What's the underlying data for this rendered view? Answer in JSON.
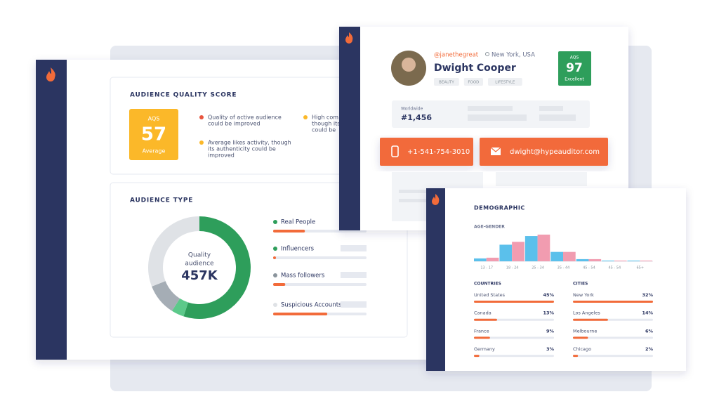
{
  "quality_card": {
    "title": "AUDIENCE QUALITY SCORE",
    "score": {
      "label": "AQS",
      "value": 57,
      "rating": "Average",
      "color": "#fbb829"
    },
    "notes": [
      {
        "color": "#e8553e",
        "lines": [
          "Quality of active audience",
          "could be improved"
        ]
      },
      {
        "color": "#fbb829",
        "lines": [
          "Average likes activity, though",
          "its authenticity could be",
          "improved"
        ]
      },
      {
        "color": "#fbb829",
        "lines": [
          "High com",
          "though its",
          "could be"
        ]
      }
    ]
  },
  "audience_type": {
    "title": "AUDIENCE TYPE",
    "center_label": [
      "Quality",
      "audience"
    ],
    "center_value": "457K",
    "segments": [
      {
        "name": "Real People",
        "share": 55,
        "bar": 34,
        "color": "#2e9e5b",
        "dot": "#2e9e5b"
      },
      {
        "name": "Influencers",
        "share": 4,
        "bar": 3,
        "color": "#5cc98a",
        "dot": "#2e9e5b"
      },
      {
        "name": "Mass followers",
        "share": 10,
        "bar": 13,
        "color": "#a5adb5",
        "dot": "#8a949c"
      },
      {
        "name": "Suspicious Accounts",
        "share": 31,
        "bar": 58,
        "color": "#dfe2e6",
        "dot": "#dfe2e6"
      }
    ]
  },
  "profile": {
    "handle": "@janethegreat",
    "location": "New York, USA",
    "name": "Dwight Cooper",
    "tags": [
      "BEAUTY",
      "FOOD",
      "LIFESTYLE"
    ],
    "score": {
      "label": "AQS",
      "value": 97,
      "rating": "Excellent",
      "color": "#2e9e5b"
    },
    "rank": {
      "label": "Worldwide",
      "value": "#1,456"
    },
    "phone": "+1-541-754-3010",
    "email": "dwight@hypeauditor.com"
  },
  "demographic": {
    "title": "DEMOGRAPHIC",
    "age_gender": {
      "title": "AGE-GENDER",
      "categories": [
        "13 - 17",
        "18 - 24",
        "25 - 34",
        "35 - 44",
        "45 - 54",
        "45 - 54",
        "65+"
      ],
      "series": [
        {
          "color": "#5bc0eb",
          "values": [
            4,
            23,
            35,
            13,
            3,
            1,
            1
          ]
        },
        {
          "color": "#f19cb0",
          "values": [
            5,
            27,
            37,
            13,
            3,
            1,
            1
          ]
        }
      ]
    },
    "countries": {
      "title": "COUNTRIES",
      "rows": [
        {
          "name": "United States",
          "share": {
            "value": 45,
            "label": "45%"
          }
        },
        {
          "name": "Canada",
          "share": {
            "value": 13,
            "label": "13%"
          }
        },
        {
          "name": "France",
          "share": {
            "value": 9,
            "label": "9%"
          }
        },
        {
          "name": "Germany",
          "share": {
            "value": 3,
            "label": "3%"
          }
        }
      ]
    },
    "cities": {
      "title": "CITIES",
      "rows": [
        {
          "name": "New York",
          "share": {
            "value": 32,
            "label": "32%"
          }
        },
        {
          "name": "Los Angeles",
          "share": {
            "value": 14,
            "label": "14%"
          }
        },
        {
          "name": "Melbourne",
          "share": {
            "value": 6,
            "label": "6%"
          }
        },
        {
          "name": "Chicago",
          "share": {
            "value": 2,
            "label": "2%"
          }
        }
      ]
    }
  }
}
